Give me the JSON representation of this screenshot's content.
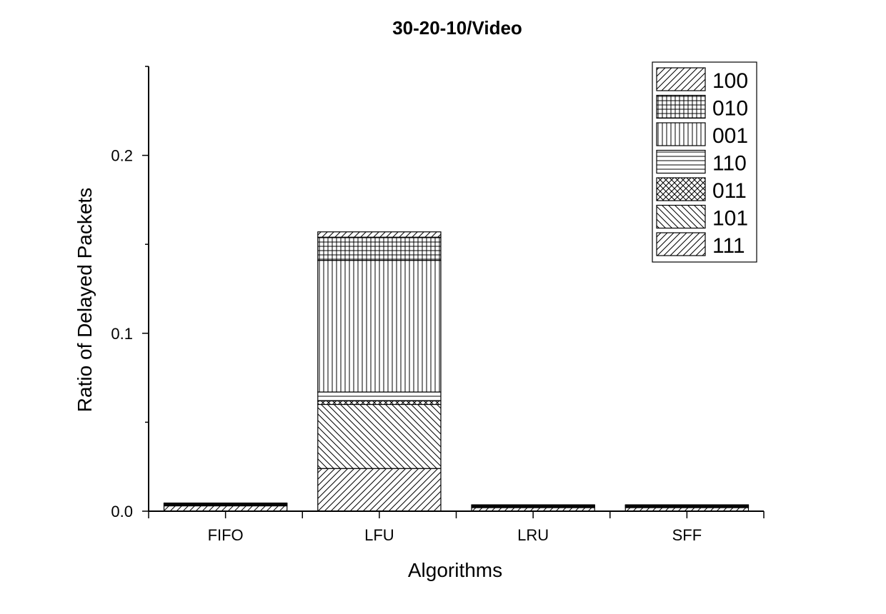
{
  "chart_data": {
    "type": "bar",
    "stacked": true,
    "title": "30-20-10/Video",
    "xlabel": "Algorithms",
    "ylabel": "Ratio of Delayed Packets",
    "categories": [
      "FIFO",
      "LFU",
      "LRU",
      "SFF"
    ],
    "ylim": [
      0,
      0.25
    ],
    "yticks": [
      0.0,
      0.1,
      0.2
    ],
    "ytick_labels": [
      "0.0",
      "0.1",
      "0.2"
    ],
    "grid": false,
    "legend_position": "top-right",
    "series": [
      {
        "name": "111",
        "pattern": "diag-up",
        "values": [
          0.003,
          0.024,
          0.002,
          0.002
        ]
      },
      {
        "name": "101",
        "pattern": "diag-down",
        "values": [
          0.0,
          0.036,
          0.0,
          0.0
        ]
      },
      {
        "name": "011",
        "pattern": "crosshatch",
        "values": [
          0.0,
          0.002,
          0.0,
          0.0
        ]
      },
      {
        "name": "110",
        "pattern": "horizontal",
        "values": [
          0.0005,
          0.005,
          0.0005,
          0.0005
        ]
      },
      {
        "name": "001",
        "pattern": "vertical",
        "values": [
          0.0005,
          0.074,
          0.0005,
          0.0005
        ]
      },
      {
        "name": "010",
        "pattern": "grid",
        "values": [
          0.0003,
          0.013,
          0.0003,
          0.0003
        ]
      },
      {
        "name": "100",
        "pattern": "diag-up",
        "values": [
          0.0003,
          0.003,
          0.0003,
          0.0003
        ]
      }
    ],
    "legend_order": [
      "100",
      "010",
      "001",
      "110",
      "011",
      "101",
      "111"
    ]
  }
}
